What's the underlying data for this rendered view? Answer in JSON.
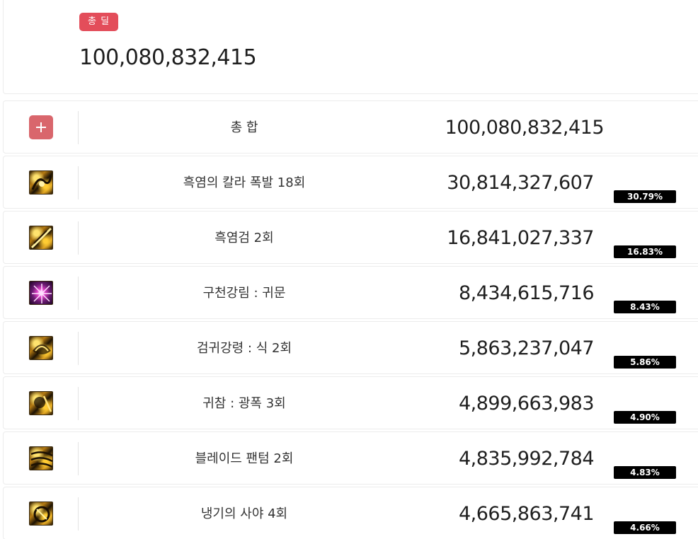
{
  "summary": {
    "badge": "총 딜",
    "total": "100,080,832,415"
  },
  "total_row": {
    "icon": "plus-icon",
    "label": "총 합",
    "value": "100,080,832,415"
  },
  "skills": [
    {
      "name": "흑염의 칼라 폭발 18회",
      "damage": "30,814,327,607",
      "percent": "30.79%",
      "icon": "flame-burst-skill-icon"
    },
    {
      "name": "흑염검 2회",
      "damage": "16,841,027,337",
      "percent": "16.83%",
      "icon": "flame-sword-skill-icon"
    },
    {
      "name": "구천강림 : 귀문",
      "damage": "8,434,615,716",
      "percent": "8.43%",
      "icon": "violet-burst-skill-icon"
    },
    {
      "name": "검귀강령 : 식 2회",
      "damage": "5,863,237,047",
      "percent": "5.86%",
      "icon": "sword-spirit-skill-icon"
    },
    {
      "name": "귀참 : 광폭 3회",
      "damage": "4,899,663,983",
      "percent": "4.90%",
      "icon": "ghost-slash-skill-icon"
    },
    {
      "name": "블레이드 팬텀 2회",
      "damage": "4,835,992,784",
      "percent": "4.83%",
      "icon": "blade-phantom-skill-icon"
    },
    {
      "name": "냉기의 사야 4회",
      "damage": "4,665,863,741",
      "percent": "4.66%",
      "icon": "frost-saya-skill-icon"
    }
  ],
  "colors": {
    "badge": "#e34d5a",
    "plus_button": "#d9666c",
    "percent_tag": "#000000"
  }
}
